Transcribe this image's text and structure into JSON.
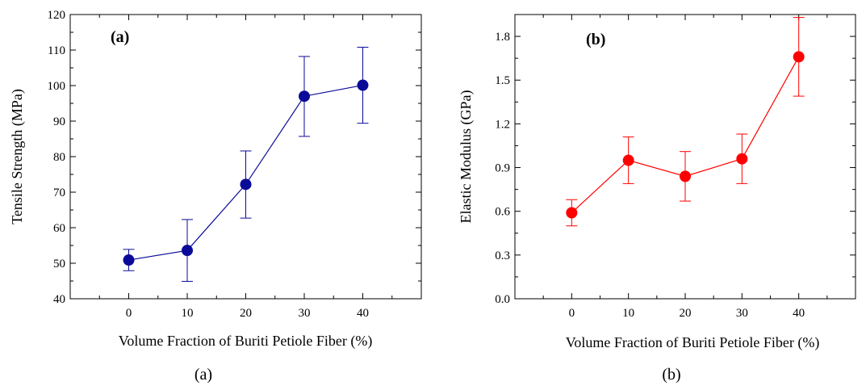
{
  "chart_data": [
    {
      "type": "line",
      "panel_label": "(a)",
      "caption": "(a)",
      "xlabel": "Volume Fraction of Buriti Petiole Fiber (%)",
      "ylabel": "Tensile Strength (MPa)",
      "x": [
        0,
        10,
        20,
        30,
        40
      ],
      "xticks": [
        0,
        10,
        20,
        30,
        40
      ],
      "xlim": [
        -10,
        50
      ],
      "ylim": [
        40,
        120
      ],
      "yticks": [
        40,
        50,
        60,
        70,
        80,
        90,
        100,
        110,
        120
      ],
      "series": [
        {
          "values": [
            50.9,
            53.6,
            72.2,
            97.0,
            100.1
          ],
          "error_low": [
            47.9,
            44.9,
            62.7,
            85.7,
            89.4
          ],
          "error_high": [
            53.9,
            62.3,
            81.6,
            108.2,
            110.8
          ],
          "color": "#0a0a99"
        }
      ]
    },
    {
      "type": "line",
      "panel_label": "(b)",
      "caption": "(b)",
      "xlabel": "Volume Fraction of Buriti Petiole Fiber (%)",
      "ylabel": "Elastic Modulus (GPa)",
      "x": [
        0,
        10,
        20,
        30,
        40
      ],
      "xticks": [
        0,
        10,
        20,
        30,
        40
      ],
      "xlim": [
        -10,
        50
      ],
      "ylim": [
        0.0,
        1.95
      ],
      "yticks": [
        "0.0",
        "0.3",
        "0.6",
        "0.9",
        "1.2",
        "1.5",
        "1.8"
      ],
      "series": [
        {
          "values": [
            0.59,
            0.95,
            0.84,
            0.96,
            1.66
          ],
          "error_low": [
            0.5,
            0.79,
            0.67,
            0.79,
            1.39
          ],
          "error_high": [
            0.68,
            1.11,
            1.01,
            1.13,
            1.93
          ],
          "color": "#ff0000"
        }
      ]
    }
  ]
}
